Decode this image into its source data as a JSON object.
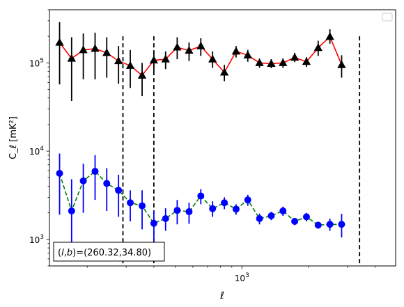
{
  "chart_data": {
    "type": "scatter",
    "xscale": "log",
    "yscale": "log",
    "xlim": [
      135,
      4950
    ],
    "ylim": [
      500,
      400000
    ],
    "xlabel": "ℓ",
    "ylabel": "C_ℓ  [mK²]",
    "xticks": [
      {
        "value": 1000,
        "label": "10^3"
      }
    ],
    "yticks": [
      {
        "value": 1000,
        "label": "10^3"
      },
      {
        "value": 10000,
        "label": "10^4"
      },
      {
        "value": 100000,
        "label": "10^5"
      }
    ],
    "vlines": [
      290,
      400,
      3400
    ],
    "annotation": "(l,b)=(260.32,34.80)",
    "legend": {
      "loc": "upper right",
      "entries": []
    },
    "series": [
      {
        "marker": "triangle",
        "color": "#000000",
        "line_color": "#ff0000",
        "line_style": "solid",
        "points": [
          {
            "x": 150,
            "y": 170000,
            "lo": 57000,
            "hi": 290000
          },
          {
            "x": 170,
            "y": 112000,
            "lo": 37000,
            "hi": 195000
          },
          {
            "x": 192,
            "y": 140000,
            "lo": 65000,
            "hi": 215000
          },
          {
            "x": 217,
            "y": 145000,
            "lo": 65000,
            "hi": 220000
          },
          {
            "x": 245,
            "y": 130000,
            "lo": 68000,
            "hi": 195000
          },
          {
            "x": 277,
            "y": 105000,
            "lo": 58000,
            "hi": 155000
          },
          {
            "x": 313,
            "y": 93000,
            "lo": 52000,
            "hi": 140000
          },
          {
            "x": 354,
            "y": 72000,
            "lo": 42000,
            "hi": 100000
          },
          {
            "x": 400,
            "y": 107000,
            "lo": 80000,
            "hi": 135000
          },
          {
            "x": 452,
            "y": 110000,
            "lo": 85000,
            "hi": 135000
          },
          {
            "x": 510,
            "y": 150000,
            "lo": 110000,
            "hi": 195000
          },
          {
            "x": 577,
            "y": 138000,
            "lo": 105000,
            "hi": 170000
          },
          {
            "x": 652,
            "y": 155000,
            "lo": 120000,
            "hi": 190000
          },
          {
            "x": 737,
            "y": 110000,
            "lo": 88000,
            "hi": 135000
          },
          {
            "x": 833,
            "y": 78000,
            "lo": 62000,
            "hi": 95000
          },
          {
            "x": 941,
            "y": 135000,
            "lo": 115000,
            "hi": 155000
          },
          {
            "x": 1063,
            "y": 122000,
            "lo": 103000,
            "hi": 140000
          },
          {
            "x": 1201,
            "y": 100000,
            "lo": 88000,
            "hi": 112000
          },
          {
            "x": 1357,
            "y": 98000,
            "lo": 87000,
            "hi": 110000
          },
          {
            "x": 1533,
            "y": 100000,
            "lo": 88000,
            "hi": 112000
          },
          {
            "x": 1732,
            "y": 115000,
            "lo": 102000,
            "hi": 130000
          },
          {
            "x": 1957,
            "y": 103000,
            "lo": 90000,
            "hi": 116000
          },
          {
            "x": 2211,
            "y": 148000,
            "lo": 120000,
            "hi": 178000
          },
          {
            "x": 2498,
            "y": 198000,
            "lo": 165000,
            "hi": 240000
          },
          {
            "x": 2822,
            "y": 95000,
            "lo": 68000,
            "hi": 122000
          }
        ]
      },
      {
        "marker": "circle",
        "color": "#0000ff",
        "line_color": "#008000",
        "line_style": "dashed",
        "points": [
          {
            "x": 150,
            "y": 5600,
            "lo": 1900,
            "hi": 9400
          },
          {
            "x": 170,
            "y": 2100,
            "lo": 700,
            "hi": 4800
          },
          {
            "x": 192,
            "y": 4600,
            "lo": 2000,
            "hi": 7200
          },
          {
            "x": 217,
            "y": 5900,
            "lo": 2800,
            "hi": 9000
          },
          {
            "x": 245,
            "y": 4300,
            "lo": 2100,
            "hi": 6400
          },
          {
            "x": 277,
            "y": 3600,
            "lo": 1800,
            "hi": 5400
          },
          {
            "x": 313,
            "y": 2600,
            "lo": 1600,
            "hi": 3600
          },
          {
            "x": 354,
            "y": 2400,
            "lo": 1300,
            "hi": 3600
          },
          {
            "x": 400,
            "y": 1520,
            "lo": 950,
            "hi": 2100
          },
          {
            "x": 452,
            "y": 1720,
            "lo": 1250,
            "hi": 2250
          },
          {
            "x": 510,
            "y": 2130,
            "lo": 1480,
            "hi": 2800
          },
          {
            "x": 577,
            "y": 2060,
            "lo": 1500,
            "hi": 2600
          },
          {
            "x": 652,
            "y": 3100,
            "lo": 2500,
            "hi": 3700
          },
          {
            "x": 737,
            "y": 2230,
            "lo": 1800,
            "hi": 2700
          },
          {
            "x": 833,
            "y": 2600,
            "lo": 2200,
            "hi": 3000
          },
          {
            "x": 941,
            "y": 2200,
            "lo": 1900,
            "hi": 2500
          },
          {
            "x": 1063,
            "y": 2800,
            "lo": 2400,
            "hi": 3200
          },
          {
            "x": 1201,
            "y": 1720,
            "lo": 1480,
            "hi": 1960
          },
          {
            "x": 1357,
            "y": 1850,
            "lo": 1650,
            "hi": 2050
          },
          {
            "x": 1533,
            "y": 2100,
            "lo": 1850,
            "hi": 2350
          },
          {
            "x": 1732,
            "y": 1600,
            "lo": 1450,
            "hi": 1750
          },
          {
            "x": 1957,
            "y": 1800,
            "lo": 1600,
            "hi": 2000
          },
          {
            "x": 2211,
            "y": 1450,
            "lo": 1320,
            "hi": 1580
          },
          {
            "x": 2498,
            "y": 1480,
            "lo": 1250,
            "hi": 1720
          },
          {
            "x": 2822,
            "y": 1480,
            "lo": 1050,
            "hi": 1950
          }
        ]
      }
    ]
  }
}
